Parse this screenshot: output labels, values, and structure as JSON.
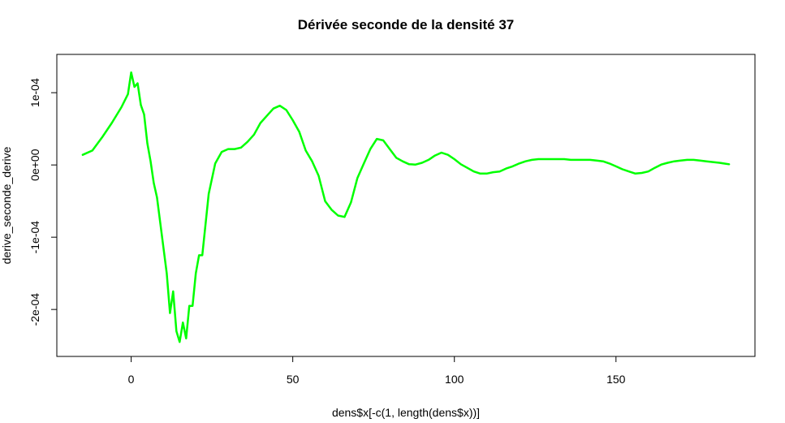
{
  "chart_data": {
    "type": "line",
    "title": "Dérivée seconde de la densité 37",
    "xlabel": "dens$x[-c(1, length(dens$x))]",
    "ylabel": "derive_seconde_derive",
    "xlim": [
      -23,
      193
    ],
    "ylim": [
      -0.000265,
      0.000153
    ],
    "x_ticks": [
      {
        "value": 0,
        "label": "0"
      },
      {
        "value": 50,
        "label": "50"
      },
      {
        "value": 100,
        "label": "100"
      },
      {
        "value": 150,
        "label": "150"
      }
    ],
    "y_ticks": [
      {
        "value": 0.0001,
        "label": "1e-04"
      },
      {
        "value": 0,
        "label": "0e+00"
      },
      {
        "value": -0.0001,
        "label": "-1e-04"
      },
      {
        "value": -0.0002,
        "label": "-2e-04"
      }
    ],
    "grid": false,
    "legend": "none",
    "line_color": "#00ff00",
    "series": [
      {
        "x": [
          -15,
          -12,
          -9,
          -6,
          -3,
          -1,
          0,
          1,
          2,
          3,
          4,
          5,
          6,
          7,
          8,
          9,
          10,
          11,
          12,
          13,
          14,
          15,
          16,
          17,
          18,
          19,
          20,
          21,
          22,
          24,
          26,
          28,
          30,
          32,
          34,
          36,
          38,
          40,
          42,
          44,
          46,
          48,
          50,
          52,
          54,
          56,
          58,
          60,
          62,
          64,
          66,
          68,
          70,
          72,
          74,
          76,
          78,
          80,
          82,
          84,
          86,
          88,
          90,
          92,
          94,
          96,
          98,
          100,
          102,
          104,
          106,
          108,
          110,
          112,
          114,
          116,
          118,
          120,
          122,
          124,
          126,
          128,
          130,
          132,
          134,
          136,
          138,
          140,
          142,
          144,
          146,
          148,
          150,
          152,
          154,
          156,
          158,
          160,
          162,
          164,
          166,
          168,
          170,
          172,
          174,
          176,
          178,
          180,
          182,
          185
        ],
        "y": [
          1.4e-05,
          2e-05,
          3.8e-05,
          5.8e-05,
          8e-05,
          9.8e-05,
          0.000128,
          0.000108,
          0.000113,
          8.3e-05,
          7e-05,
          3e-05,
          5e-06,
          -2.5e-05,
          -4.5e-05,
          -8e-05,
          -0.000115,
          -0.00015,
          -0.000205,
          -0.000175,
          -0.00023,
          -0.000245,
          -0.000218,
          -0.00024,
          -0.000195,
          -0.000195,
          -0.00015,
          -0.000125,
          -0.000125,
          -4e-05,
          2e-06,
          1.8e-05,
          2.2e-05,
          2.2e-05,
          2.4e-05,
          3.2e-05,
          4.2e-05,
          5.8e-05,
          6.8e-05,
          7.8e-05,
          8.2e-05,
          7.6e-05,
          6.2e-05,
          4.6e-05,
          2e-05,
          5e-06,
          -1.5e-05,
          -5e-05,
          -6.2e-05,
          -7e-05,
          -7.2e-05,
          -5.2e-05,
          -1.8e-05,
          2e-06,
          2.2e-05,
          3.6e-05,
          3.4e-05,
          2.2e-05,
          1e-05,
          5e-06,
          1e-06,
          5e-07,
          3e-06,
          7e-06,
          1.3e-05,
          1.7e-05,
          1.4e-05,
          8e-06,
          1e-06,
          -4e-06,
          -9e-06,
          -1.2e-05,
          -1.2e-05,
          -1e-05,
          -9e-06,
          -5e-06,
          -2e-06,
          2e-06,
          5e-06,
          7e-06,
          8e-06,
          8e-06,
          8e-06,
          8e-06,
          8e-06,
          7e-06,
          7e-06,
          7e-06,
          7e-06,
          6e-06,
          5e-06,
          2e-06,
          -2e-06,
          -6e-06,
          -9e-06,
          -1.2e-05,
          -1.1e-05,
          -9e-06,
          -4e-06,
          5e-07,
          3e-06,
          5e-06,
          6e-06,
          7e-06,
          7e-06,
          6e-06,
          5e-06,
          4e-06,
          3e-06,
          1e-06
        ]
      }
    ]
  }
}
